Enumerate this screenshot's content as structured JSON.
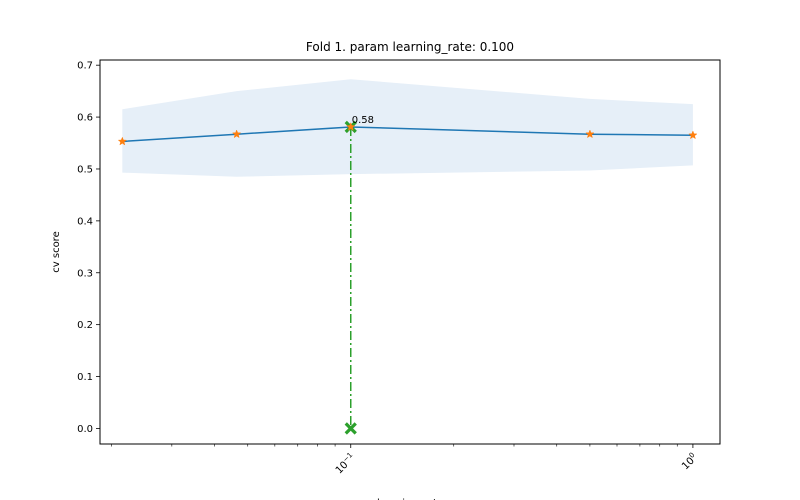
{
  "chart_data": {
    "type": "line",
    "title": "Fold 1. param learning_rate: 0.100",
    "xlabel": "learning_rate",
    "ylabel": "cv score",
    "xscale": "log",
    "xlim": [
      0.0185,
      1.2
    ],
    "ylim": [
      -0.03,
      0.71
    ],
    "yticks": [
      0.0,
      0.1,
      0.2,
      0.3,
      0.4,
      0.5,
      0.6,
      0.7
    ],
    "ytick_labels": [
      "0.0",
      "0.1",
      "0.2",
      "0.3",
      "0.4",
      "0.5",
      "0.6",
      "0.7"
    ],
    "xticks_major": [
      0.1,
      1.0
    ],
    "xtick_labels": [
      {
        "base": "10",
        "exp": "−1"
      },
      {
        "base": "10",
        "exp": "0"
      }
    ],
    "x": [
      0.0215,
      0.0464,
      0.1,
      0.5,
      1.0
    ],
    "series": [
      {
        "values": [
          0.553,
          0.567,
          0.581,
          0.567,
          0.565
        ],
        "band_low": [
          0.493,
          0.485,
          0.49,
          0.497,
          0.507
        ],
        "band_high": [
          0.615,
          0.65,
          0.673,
          0.635,
          0.625
        ]
      }
    ],
    "best": {
      "x": 0.1,
      "y": 0.581,
      "label": "0.58"
    },
    "legend": "none",
    "grid": false,
    "colors": {
      "line": "#1f77b4",
      "markers": "#ff7f0e",
      "band": "#e6eff8",
      "best": "#2ca02c"
    }
  }
}
